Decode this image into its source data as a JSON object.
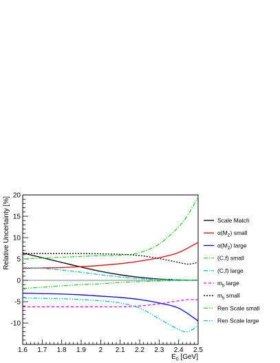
{
  "chart_data": {
    "type": "line",
    "title": "",
    "xlabel": "E",
    "xlabel_sub": "0",
    "xlabel_unit": " [GeV]",
    "ylabel": "Relative Uncertainty [%]",
    "xlim": [
      1.6,
      2.5
    ],
    "ylim": [
      -15,
      20
    ],
    "x_ticks": [
      1.6,
      1.7,
      1.8,
      1.9,
      2.0,
      2.1,
      2.2,
      2.3,
      2.4,
      2.5
    ],
    "x_tick_labels": [
      "1.6",
      "1.7",
      "1.8",
      "1.9",
      "2",
      "2.1",
      "2.2",
      "2.3",
      "2.4",
      "2.5"
    ],
    "y_ticks": [
      -10,
      -5,
      0,
      5,
      10,
      15,
      20
    ],
    "y_tick_labels": [
      "-10",
      "-5",
      "0",
      "5",
      "10",
      "15",
      "20"
    ],
    "grid": false,
    "legend_position": "right",
    "series": [
      {
        "name": "Scale Match",
        "color": "#000000",
        "dash": "solid",
        "x": [
          1.6,
          1.7,
          1.8,
          1.9,
          2.0,
          2.1,
          2.2,
          2.3,
          2.4,
          2.5
        ],
        "y": [
          6.4,
          5.3,
          4.2,
          3.1,
          2.1,
          1.3,
          0.7,
          0.3,
          0.1,
          0.0
        ]
      },
      {
        "name": "α(M_Z) small",
        "color": "#ff0000",
        "dash": "solid",
        "x": [
          1.6,
          1.7,
          1.8,
          1.9,
          2.0,
          2.1,
          2.2,
          2.3,
          2.4,
          2.5
        ],
        "y": [
          2.8,
          2.9,
          3.0,
          3.2,
          3.5,
          3.9,
          4.5,
          5.3,
          6.5,
          8.9
        ]
      },
      {
        "name": "α(M_Z) large",
        "color": "#0000ff",
        "dash": "solid",
        "x": [
          1.6,
          1.7,
          1.8,
          1.9,
          2.0,
          2.1,
          2.2,
          2.3,
          2.4,
          2.5
        ],
        "y": [
          -3.0,
          -3.1,
          -3.2,
          -3.4,
          -3.7,
          -4.0,
          -4.5,
          -5.3,
          -6.5,
          -9.5
        ]
      },
      {
        "name": "(C,f) small",
        "color": "#22dd22",
        "dash": "dashdot",
        "x": [
          1.6,
          1.7,
          1.8,
          1.9,
          2.0,
          2.1,
          2.2,
          2.3,
          2.4,
          2.45,
          2.5
        ],
        "y": [
          5.0,
          5.2,
          5.4,
          5.6,
          5.8,
          5.9,
          6.5,
          8.5,
          12.5,
          15.5,
          19.5
        ]
      },
      {
        "name": "(C,f) large",
        "color": "#00cccc",
        "dash": "dashdot",
        "x": [
          1.6,
          1.7,
          1.8,
          1.9,
          2.0,
          2.1,
          2.2,
          2.3,
          2.4,
          2.45,
          2.5
        ],
        "y": [
          3.0,
          2.8,
          2.4,
          1.9,
          1.3,
          0.8,
          0.4,
          0.2,
          0.1,
          0.05,
          0.0
        ]
      },
      {
        "name": "m_b large",
        "color": "#ff00ff",
        "dash": "dashed",
        "x": [
          1.6,
          1.7,
          1.8,
          1.9,
          2.0,
          2.1,
          2.2,
          2.3,
          2.4,
          2.45,
          2.5
        ],
        "y": [
          -6.2,
          -6.2,
          -6.2,
          -6.2,
          -6.2,
          -6.2,
          -6.0,
          -5.5,
          -4.8,
          -4.5,
          -4.6
        ]
      },
      {
        "name": "m_b small",
        "color": "#000000",
        "dash": "dotted",
        "x": [
          1.6,
          1.7,
          1.8,
          1.9,
          2.0,
          2.1,
          2.2,
          2.3,
          2.4,
          2.45,
          2.5
        ],
        "y": [
          6.3,
          6.3,
          6.3,
          6.3,
          6.2,
          6.1,
          5.8,
          5.1,
          4.2,
          3.8,
          4.2
        ]
      },
      {
        "name": "Ren Scale small",
        "color": "#22dd22",
        "dash": "dashdotdot",
        "x": [
          1.6,
          1.7,
          1.8,
          1.9,
          2.0,
          2.1,
          2.2,
          2.3,
          2.4,
          2.5
        ],
        "y": [
          -1.9,
          -1.6,
          -1.3,
          -1.0,
          -0.8,
          -0.5,
          -0.3,
          -0.15,
          -0.05,
          0.0
        ]
      },
      {
        "name": "Ren Scale large",
        "color": "#00cccc",
        "dash": "dashdotdot",
        "x": [
          1.6,
          1.7,
          1.8,
          1.9,
          2.0,
          2.1,
          2.2,
          2.3,
          2.4,
          2.45,
          2.5
        ],
        "y": [
          -4.1,
          -4.2,
          -4.3,
          -4.5,
          -4.8,
          -5.3,
          -6.5,
          -9.0,
          -11.5,
          -12.0,
          -10.5
        ]
      }
    ],
    "legend": [
      {
        "main": "Scale Match",
        "sub": "",
        "tail": ""
      },
      {
        "main": "α(M",
        "sub": "Z",
        "tail": ") small"
      },
      {
        "main": "α(M",
        "sub": "Z",
        "tail": ") large"
      },
      {
        "main": "(C,f) small",
        "sub": "",
        "tail": ""
      },
      {
        "main": "(C,f) large",
        "sub": "",
        "tail": ""
      },
      {
        "main": "m",
        "sub": "b",
        "tail": " large"
      },
      {
        "main": "m",
        "sub": "b",
        "tail": " small"
      },
      {
        "main": "Ren Scale small",
        "sub": "",
        "tail": ""
      },
      {
        "main": "Ren Scale large",
        "sub": "",
        "tail": ""
      }
    ]
  }
}
